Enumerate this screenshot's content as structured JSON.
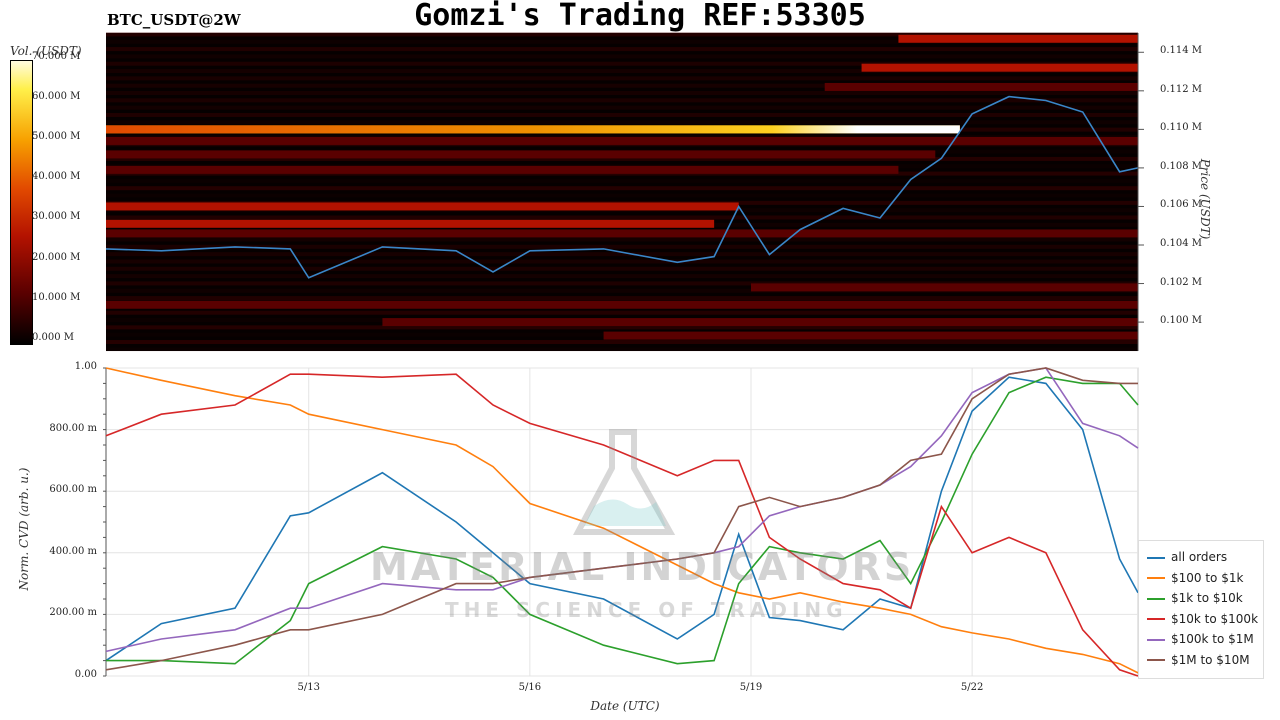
{
  "title": "Gomzi's Trading REF:53305",
  "symbol": "BTC_USDT@2W",
  "colorbar": {
    "label": "Vol. (USDT)",
    "ticks": [
      "0.000 M",
      "10.000 M",
      "20.000 M",
      "30.000 M",
      "40.000 M",
      "50.000 M",
      "60.000 M",
      "70.000 M"
    ]
  },
  "watermark": {
    "line1": "MATERIAL INDICATORS",
    "line2": "THE SCIENCE OF TRADING",
    "icon": "flask-icon"
  },
  "chart_data": [
    {
      "type": "heatmap",
      "ylabel": "Price (USDT)",
      "y_ticks": [
        "0.100 M",
        "0.102 M",
        "0.104 M",
        "0.106 M",
        "0.108 M",
        "0.110 M",
        "0.112 M",
        "0.114 M"
      ],
      "ylim": [
        98500,
        115000
      ],
      "colorscale": [
        "#000000",
        "#5a0000",
        "#b31200",
        "#e24a00",
        "#f7a000",
        "#fff04a",
        "#ffffff"
      ],
      "price_series": {
        "name": "price",
        "color": "#3a86c8",
        "x": [
          "5/10 06:00",
          "5/11 00:00",
          "5/12 00:00",
          "5/12 18:00",
          "5/13 00:00",
          "5/14 00:00",
          "5/15 00:00",
          "5/15 12:00",
          "5/16 00:00",
          "5/17 00:00",
          "5/18 00:00",
          "5/18 12:00",
          "5/18 20:00",
          "5/19 06:00",
          "5/19 16:00",
          "5/20 06:00",
          "5/20 18:00",
          "5/21 04:00",
          "5/21 14:00",
          "5/22 00:00",
          "5/22 12:00",
          "5/23 00:00",
          "5/23 12:00",
          "5/24 00:00",
          "5/24 06:00"
        ],
        "y": [
          103800,
          103700,
          103900,
          103800,
          102300,
          103900,
          103700,
          102600,
          103700,
          103800,
          103100,
          103400,
          106000,
          103500,
          104800,
          105900,
          105400,
          107400,
          108500,
          110800,
          111700,
          111500,
          110900,
          107800,
          108000
        ]
      },
      "liquidity_bands": [
        {
          "price": 114700,
          "from": "5/21 00:00",
          "to": "5/24 06:00",
          "intensity": 0.45
        },
        {
          "price": 113200,
          "from": "5/20 12:00",
          "to": "5/24 06:00",
          "intensity": 0.35
        },
        {
          "price": 112200,
          "from": "5/20 00:00",
          "to": "5/24 06:00",
          "intensity": 0.3
        },
        {
          "price": 110000,
          "from": "5/10 06:00",
          "to": "5/21 20:00",
          "intensity": 0.8
        },
        {
          "price": 109400,
          "from": "5/10 06:00",
          "to": "5/24 06:00",
          "intensity": 0.25
        },
        {
          "price": 108700,
          "from": "5/10 06:00",
          "to": "5/21 12:00",
          "intensity": 0.3
        },
        {
          "price": 107900,
          "from": "5/10 06:00",
          "to": "5/21 00:00",
          "intensity": 0.3
        },
        {
          "price": 106000,
          "from": "5/10 06:00",
          "to": "5/18 20:00",
          "intensity": 0.35
        },
        {
          "price": 105100,
          "from": "5/10 06:00",
          "to": "5/18 12:00",
          "intensity": 0.45
        },
        {
          "price": 104600,
          "from": "5/10 06:00",
          "to": "5/24 06:00",
          "intensity": 0.2
        },
        {
          "price": 101800,
          "from": "5/19 00:00",
          "to": "5/24 06:00",
          "intensity": 0.2
        },
        {
          "price": 100900,
          "from": "5/10 06:00",
          "to": "5/24 06:00",
          "intensity": 0.18
        },
        {
          "price": 100000,
          "from": "5/14 00:00",
          "to": "5/24 06:00",
          "intensity": 0.25
        },
        {
          "price": 99300,
          "from": "5/17 00:00",
          "to": "5/24 06:00",
          "intensity": 0.2
        }
      ]
    },
    {
      "type": "line",
      "xlabel": "Date (UTC)",
      "ylabel": "Norm. CVD (arb. u.)",
      "x_ticks": [
        "5/13",
        "5/16",
        "5/19",
        "5/22"
      ],
      "y_ticks": [
        "0.00",
        "200.00 m",
        "400.00 m",
        "600.00 m",
        "800.00 m",
        "1.00"
      ],
      "ylim": [
        0,
        1
      ],
      "grid": true,
      "legend_position": "right",
      "x": [
        "5/10 06:00",
        "5/11 00:00",
        "5/12 00:00",
        "5/12 18:00",
        "5/13 00:00",
        "5/14 00:00",
        "5/15 00:00",
        "5/15 12:00",
        "5/16 00:00",
        "5/17 00:00",
        "5/18 00:00",
        "5/18 12:00",
        "5/18 20:00",
        "5/19 06:00",
        "5/19 16:00",
        "5/20 06:00",
        "5/20 18:00",
        "5/21 04:00",
        "5/21 14:00",
        "5/22 00:00",
        "5/22 12:00",
        "5/23 00:00",
        "5/23 12:00",
        "5/24 00:00",
        "5/24 06:00"
      ],
      "series": [
        {
          "name": "all orders",
          "color": "#1f77b4",
          "values": [
            0.05,
            0.17,
            0.22,
            0.52,
            0.53,
            0.66,
            0.5,
            0.4,
            0.3,
            0.25,
            0.12,
            0.2,
            0.46,
            0.19,
            0.18,
            0.15,
            0.25,
            0.22,
            0.6,
            0.86,
            0.97,
            0.95,
            0.8,
            0.38,
            0.27
          ]
        },
        {
          "name": "$100 to $1k",
          "color": "#ff7f0e",
          "values": [
            1.0,
            0.96,
            0.91,
            0.88,
            0.85,
            0.8,
            0.75,
            0.68,
            0.56,
            0.48,
            0.36,
            0.3,
            0.27,
            0.25,
            0.27,
            0.24,
            0.22,
            0.2,
            0.16,
            0.14,
            0.12,
            0.09,
            0.07,
            0.04,
            0.01
          ]
        },
        {
          "name": "$1k to $10k",
          "color": "#2ca02c",
          "values": [
            0.05,
            0.05,
            0.04,
            0.18,
            0.3,
            0.42,
            0.38,
            0.32,
            0.2,
            0.1,
            0.04,
            0.05,
            0.3,
            0.42,
            0.4,
            0.38,
            0.44,
            0.3,
            0.5,
            0.72,
            0.92,
            0.97,
            0.95,
            0.95,
            0.88
          ]
        },
        {
          "name": "$10k to $100k",
          "color": "#d62728",
          "values": [
            0.78,
            0.85,
            0.88,
            0.98,
            0.98,
            0.97,
            0.98,
            0.88,
            0.82,
            0.75,
            0.65,
            0.7,
            0.7,
            0.45,
            0.38,
            0.3,
            0.28,
            0.22,
            0.55,
            0.4,
            0.45,
            0.4,
            0.15,
            0.02,
            0.0
          ]
        },
        {
          "name": "$100k to $1M",
          "color": "#9467bd",
          "values": [
            0.08,
            0.12,
            0.15,
            0.22,
            0.22,
            0.3,
            0.28,
            0.28,
            0.32,
            0.35,
            0.38,
            0.4,
            0.42,
            0.52,
            0.55,
            0.58,
            0.62,
            0.68,
            0.78,
            0.92,
            0.98,
            1.0,
            0.82,
            0.78,
            0.74
          ]
        },
        {
          "name": "$1M to $10M",
          "color": "#8c564b",
          "values": [
            0.02,
            0.05,
            0.1,
            0.15,
            0.15,
            0.2,
            0.3,
            0.3,
            0.32,
            0.35,
            0.38,
            0.4,
            0.55,
            0.58,
            0.55,
            0.58,
            0.62,
            0.7,
            0.72,
            0.9,
            0.98,
            1.0,
            0.96,
            0.95,
            0.95
          ]
        }
      ]
    }
  ]
}
